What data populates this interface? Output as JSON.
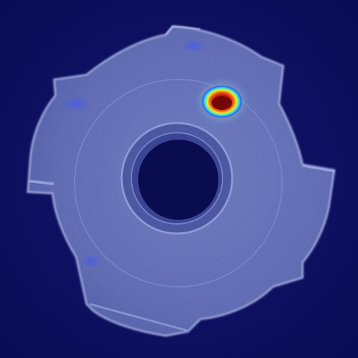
{
  "image": {
    "subject": "gear-washer-heatmap",
    "colors": {
      "background": "#0c0e5e",
      "part_body": "#5966b0",
      "part_edge": "#9aa6de",
      "hole": "#0a0c50",
      "heat_low": "#2a3cff",
      "heat_mid_cyan": "#35e6d2",
      "heat_mid_yellow": "#f2ea2a",
      "heat_high": "#d81a10",
      "heat_core": "#7a0808"
    }
  }
}
